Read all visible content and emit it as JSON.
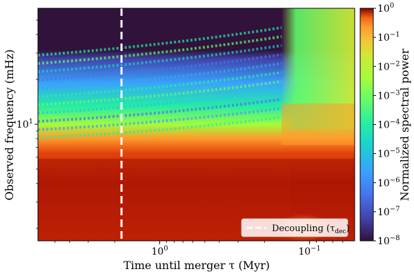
{
  "chart_data": {
    "type": "heatmap",
    "title": "",
    "xlabel": "Time until merger τ (Myr)",
    "ylabel": "Observed frequency (mHz)",
    "x_scale": "log",
    "x_reversed": true,
    "xlim": [
      6.5,
      0.05
    ],
    "x_ticks": [
      {
        "value": 1,
        "base": "10",
        "exp": "0"
      },
      {
        "value": 0.1,
        "base": "10",
        "exp": "−1"
      }
    ],
    "y_scale": "log",
    "ylim": [
      1.65,
      60
    ],
    "y_ticks": [
      {
        "value": 10,
        "base": "10",
        "exp": "1"
      }
    ],
    "colorbar": {
      "label": "Normalized spectral power",
      "scale": "log",
      "range": [
        1e-08,
        1
      ],
      "colormap": "turbo",
      "ticks": [
        {
          "base": "10",
          "exp": "0"
        },
        {
          "base": "10",
          "exp": "−1"
        },
        {
          "base": "10",
          "exp": "−2"
        },
        {
          "base": "10",
          "exp": "−3"
        },
        {
          "base": "10",
          "exp": "−4"
        },
        {
          "base": "10",
          "exp": "−5"
        },
        {
          "base": "10",
          "exp": "−6"
        },
        {
          "base": "10",
          "exp": "−7"
        },
        {
          "base": "10",
          "exp": "−8"
        }
      ]
    },
    "decoupling_time_myr": 1.8,
    "legend": {
      "position": "lower-right",
      "entries": [
        {
          "label": "Decoupling (τ",
          "subscript": "dec",
          "suffix": ")",
          "style": "dashed",
          "color": "#ffffff"
        }
      ]
    }
  }
}
